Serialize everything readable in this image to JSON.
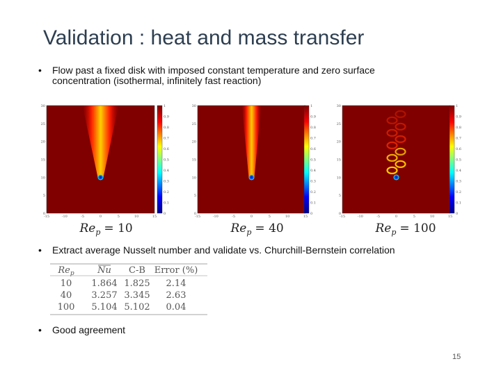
{
  "title": "Validation : heat and mass transfer",
  "bullets": [
    "Flow past a fixed disk with imposed constant temperature and zero surface concentration (isothermal, infinitely fast reaction)",
    "Extract average Nusselt number and validate vs. Churchill-Bernstein correlation",
    "Good agreement"
  ],
  "axis_ticks": {
    "x": [
      "-15",
      "-10",
      "-5",
      "0",
      "5",
      "10",
      "15"
    ],
    "y": [
      "0",
      "5",
      "10",
      "15",
      "20",
      "25",
      "30"
    ],
    "colorbar": [
      "0",
      "0.1",
      "0.2",
      "0.3",
      "0.4",
      "0.5",
      "0.6",
      "0.7",
      "0.8",
      "0.9",
      "1"
    ]
  },
  "panels": [
    {
      "label_main": "Re",
      "label_sub": "p",
      "label_value": "= 10"
    },
    {
      "label_main": "Re",
      "label_sub": "p",
      "label_value": "= 40"
    },
    {
      "label_main": "Re",
      "label_sub": "p",
      "label_value": "= 100"
    }
  ],
  "table": {
    "header": [
      "Re",
      "Nu",
      "C-B",
      "Error (%)"
    ],
    "header_sub": "p",
    "rows": [
      [
        "10",
        "1.864",
        "1.825",
        "2.14"
      ],
      [
        "40",
        "3.257",
        "3.345",
        "2.63"
      ],
      [
        "100",
        "5.104",
        "5.102",
        "0.04"
      ]
    ]
  },
  "page_number": "15"
}
